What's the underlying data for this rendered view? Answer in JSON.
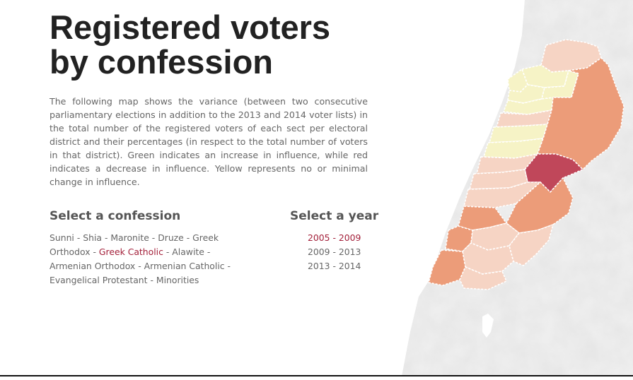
{
  "title_line1": "Registered voters",
  "title_line2": "by confession",
  "description": "The following map shows the variance (between two consecutive parliamentary elections in addition to the 2013 and 2014 voter lists) in the total number of the registered voters of each sect per electoral district and their percentages (in respect to the total number of voters in that district). Green indicates an increase in influence, while red indicates a decrease in influence. Yellow represents no or minimal change in influence.",
  "confession_heading": "Select a confession",
  "year_heading": "Select a year",
  "separator": " - ",
  "confessions": [
    {
      "label": "Sunni",
      "active": false
    },
    {
      "label": "Shia",
      "active": false
    },
    {
      "label": "Maronite",
      "active": false
    },
    {
      "label": "Druze",
      "active": false
    },
    {
      "label": "Greek Orthodox",
      "active": false
    },
    {
      "label": "Greek Catholic",
      "active": true
    },
    {
      "label": "Alawite",
      "active": false
    },
    {
      "label": "Armenian Orthodox",
      "active": false
    },
    {
      "label": "Armenian Catholic",
      "active": false
    },
    {
      "label": "Evangelical Protestant",
      "active": false
    },
    {
      "label": "Minorities",
      "active": false
    }
  ],
  "years": [
    {
      "label": "2005 - 2009",
      "active": true
    },
    {
      "label": "2009 - 2013",
      "active": false
    },
    {
      "label": "2013 - 2014",
      "active": false
    }
  ],
  "colors": {
    "accent": "#a3203a",
    "strong_decrease": "#c0475a",
    "decrease": "#ec9c79",
    "light_decrease": "#f6d4c4",
    "minimal_change": "#f6f3c6"
  }
}
